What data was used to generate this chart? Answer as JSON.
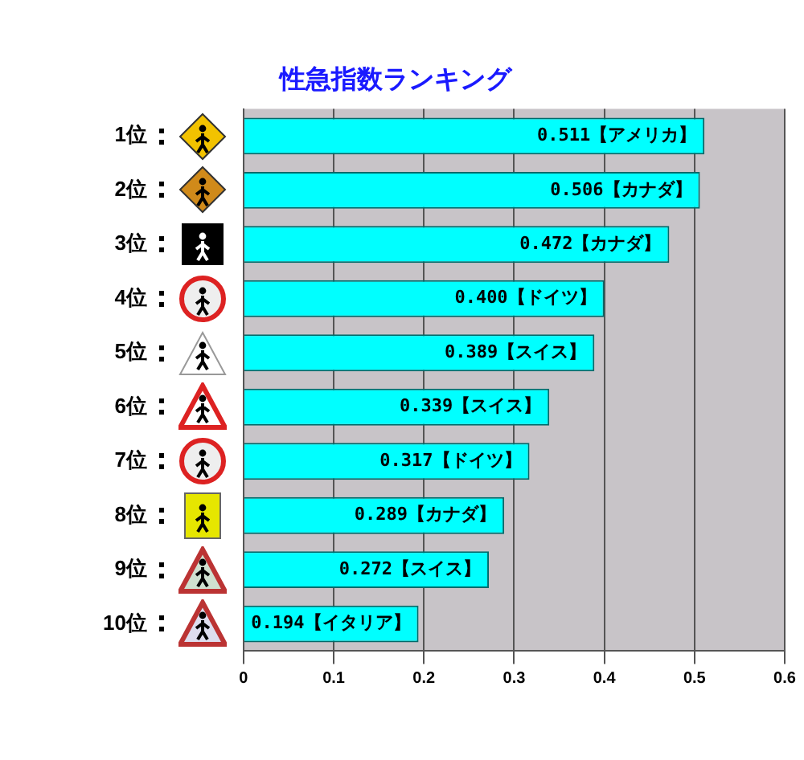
{
  "chart_data": {
    "type": "bar",
    "orientation": "horizontal",
    "title": "性急指数ランキング",
    "categories": [
      "1位",
      "2位",
      "3位",
      "4位",
      "5位",
      "6位",
      "7位",
      "8位",
      "9位",
      "10位"
    ],
    "values": [
      0.511,
      0.506,
      0.472,
      0.4,
      0.389,
      0.339,
      0.317,
      0.289,
      0.272,
      0.194
    ],
    "value_labels": [
      "0.511【アメリカ】",
      "0.506【カナダ】",
      "0.472【カナダ】",
      "0.400【ドイツ】",
      "0.389【スイス】",
      "0.339【スイス】",
      "0.317【ドイツ】",
      "0.289【カナダ】",
      "0.272【スイス】",
      "0.194【イタリア】"
    ],
    "color": "#00ffff",
    "xlim": [
      0,
      0.6
    ],
    "xticks": [
      0,
      0.1,
      0.2,
      0.3,
      0.4,
      0.5,
      0.6
    ],
    "grid": "x"
  }
}
